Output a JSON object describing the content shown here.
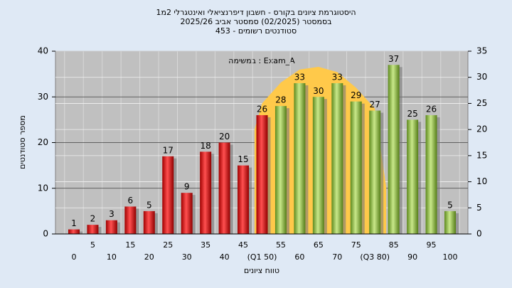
{
  "chart_data": {
    "type": "bar",
    "title": [
      "היסטוגרמת ציונים בקורס - חשבון דיפרנציאלי ואינטגרלי 2מ1",
      "בסמסטר  (02/2025)  סמסטר אביב 2025/26",
      "סטודנטים רשומים - 453"
    ],
    "annotation": "במשימה : Exam_A",
    "xlabel": "טווח ציונים",
    "ylabel": "מספר סטודנטים",
    "categories": [
      "0",
      "5",
      "10",
      "15",
      "20",
      "25",
      "30",
      "35",
      "40",
      "45",
      "(Q1 50)",
      "55",
      "60",
      "65",
      "70",
      "75",
      "(Q3 80)",
      "85",
      "90",
      "95",
      "100"
    ],
    "values": [
      1,
      2,
      3,
      6,
      5,
      17,
      9,
      18,
      20,
      15,
      26,
      28,
      33,
      30,
      33,
      29,
      27,
      37,
      25,
      26,
      5
    ],
    "colors": [
      "red",
      "red",
      "red",
      "red",
      "red",
      "red",
      "red",
      "red",
      "red",
      "red",
      "red",
      "green",
      "green",
      "green",
      "green",
      "green",
      "green",
      "green",
      "green",
      "green",
      "green"
    ],
    "ylim": [
      0,
      40
    ],
    "yticks": [
      0,
      10,
      20,
      30,
      40
    ],
    "y2lim": [
      0,
      35
    ],
    "y2ticks": [
      0,
      5,
      10,
      15,
      20,
      25,
      30,
      35
    ],
    "curve": {
      "axis": "y2",
      "color": "#ffc94a",
      "x": [
        48,
        50,
        55,
        60,
        65,
        70,
        75,
        80,
        83
      ],
      "values": [
        20,
        25,
        29,
        31.5,
        32,
        31,
        28,
        24,
        9
      ]
    },
    "grid": true
  }
}
